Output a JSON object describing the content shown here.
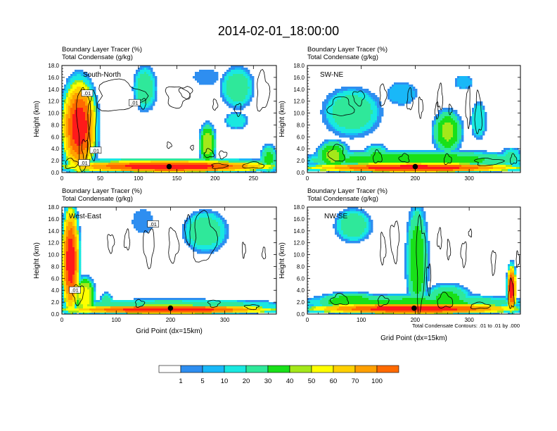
{
  "figure_title": "2014-02-01_18:00:00",
  "panel_header": [
    "Boundary Layer Tracer   (%)",
    "Total Condensate   (g/kg)"
  ],
  "y_axis_label": "Height (km)",
  "x_axis_label": "Grid Point (dx=15km)",
  "contour_note": "Total Condensate Contours: .01 to .01 by .000",
  "colors": {
    "palette": [
      "#ffffff",
      "#2e8ef0",
      "#19b8f8",
      "#19e8e0",
      "#2fe89a",
      "#19e019",
      "#a4e81a",
      "#ffff00",
      "#ffd000",
      "#ffa000",
      "#ff6a00",
      "#ff1a1a",
      "#e00010"
    ],
    "contour": "#000000"
  },
  "colorbar": {
    "labels": [
      "1",
      "5",
      "10",
      "20",
      "30",
      "40",
      "50",
      "60",
      "70",
      "100"
    ]
  },
  "chart_data": [
    {
      "type": "heatmap",
      "label": "South-North",
      "xlim": [
        0,
        280
      ],
      "ylim": [
        0,
        18
      ],
      "x_ticks": [
        "0",
        "50",
        "100",
        "150",
        "200",
        "250"
      ],
      "x_tick_values": [
        0,
        50,
        100,
        150,
        200,
        250
      ],
      "y_ticks": [
        "0.0",
        "2.0",
        "4.0",
        "6.0",
        "8.0",
        "10.0",
        "12.0",
        "14.0",
        "16.0",
        "18.0"
      ],
      "marker": {
        "x": 140,
        "y": 1.0
      },
      "contour_labels": [
        {
          "text": ".01",
          "x": 33,
          "y": 13.3
        },
        {
          "text": ".01",
          "x": 95,
          "y": 11.7
        },
        {
          "text": ".01",
          "x": 44,
          "y": 3.7
        },
        {
          "text": ".01",
          "x": 29,
          "y": 1.6
        }
      ],
      "features": [
        {
          "x": [
            0,
            280
          ],
          "base": 0,
          "top": 2.0,
          "peak": 100
        },
        {
          "x": [
            0,
            280
          ],
          "base": 1.4,
          "top": 2.3,
          "peak": 35
        },
        {
          "x": [
            0,
            45
          ],
          "base": 0,
          "top": 15.5,
          "peak": 100
        },
        {
          "x": [
            10,
            28
          ],
          "base": 5,
          "top": 14,
          "peak": 70
        },
        {
          "x": [
            180,
            200
          ],
          "base": 1.6,
          "top": 8,
          "peak": 50
        },
        {
          "x": [
            260,
            280
          ],
          "base": 0,
          "top": 4.5,
          "peak": 35
        },
        {
          "x": [
            215,
            240
          ],
          "base": 7.5,
          "top": 10,
          "peak": 20
        },
        {
          "x": [
            95,
            122
          ],
          "base": 10.8,
          "top": 17.5,
          "peak": 30
        },
        {
          "x": [
            172,
            205
          ],
          "base": 14.8,
          "top": 17.4,
          "peak": 5
        },
        {
          "x": [
            210,
            248
          ],
          "base": 11.2,
          "top": 17.4,
          "peak": 30
        }
      ],
      "contours": [
        {
          "cx": 75,
          "cy": 12.9,
          "rx": 30,
          "ry": 2.6
        },
        {
          "cx": 150,
          "cy": 12.8,
          "rx": 14,
          "ry": 1.8
        },
        {
          "cx": 162,
          "cy": 13.5,
          "rx": 8,
          "ry": 1.0
        },
        {
          "cx": 105,
          "cy": 11.6,
          "rx": 5,
          "ry": 0.8
        },
        {
          "cx": 262,
          "cy": 13.6,
          "rx": 8,
          "ry": 3.2
        },
        {
          "cx": 230,
          "cy": 10.6,
          "rx": 4,
          "ry": 1.0
        },
        {
          "cx": 200,
          "cy": 11.4,
          "rx": 3,
          "ry": 0.9
        },
        {
          "cx": 28,
          "cy": 7.8,
          "rx": 8,
          "ry": 7.0
        },
        {
          "cx": 40,
          "cy": 8.2,
          "rx": 5,
          "ry": 5.8
        },
        {
          "cx": 30,
          "cy": 4.0,
          "rx": 4,
          "ry": 1.6
        },
        {
          "cx": 140,
          "cy": 4.6,
          "rx": 3,
          "ry": 0.5
        },
        {
          "cx": 170,
          "cy": 4.2,
          "rx": 2,
          "ry": 0.4
        },
        {
          "cx": 192,
          "cy": 3.2,
          "rx": 6,
          "ry": 0.7
        },
        {
          "cx": 210,
          "cy": 3.0,
          "rx": 5,
          "ry": 0.6
        },
        {
          "cx": 250,
          "cy": 1.2,
          "rx": 14,
          "ry": 0.5
        },
        {
          "cx": 205,
          "cy": 1.1,
          "rx": 10,
          "ry": 0.4
        },
        {
          "cx": 12,
          "cy": 1.5,
          "rx": 8,
          "ry": 0.8
        }
      ]
    },
    {
      "type": "heatmap",
      "label": "SW-NE",
      "xlim": [
        0,
        395
      ],
      "ylim": [
        0,
        18
      ],
      "x_ticks": [
        "0",
        "100",
        "200",
        "300"
      ],
      "x_tick_values": [
        0,
        100,
        200,
        300
      ],
      "y_ticks": [
        "0.0",
        "2.0",
        "4.0",
        "6.0",
        "8.0",
        "10.0",
        "12.0",
        "14.0",
        "16.0",
        "18.0"
      ],
      "marker": {
        "x": 200,
        "y": 1.0
      },
      "contour_labels": [],
      "features": [
        {
          "x": [
            0,
            395
          ],
          "base": 0,
          "top": 1.6,
          "peak": 100
        },
        {
          "x": [
            0,
            395
          ],
          "base": 0.6,
          "top": 3.6,
          "peak": 40
        },
        {
          "x": [
            20,
            75
          ],
          "base": 0.5,
          "top": 5.2,
          "peak": 45
        },
        {
          "x": [
            105,
            150
          ],
          "base": 0.5,
          "top": 4.5,
          "peak": 35
        },
        {
          "x": [
            35,
            130
          ],
          "base": 6.5,
          "top": 13.8,
          "peak": 30
        },
        {
          "x": [
            150,
            200
          ],
          "base": 11.6,
          "top": 15.0,
          "peak": 10
        },
        {
          "x": [
            275,
            305
          ],
          "base": 14.2,
          "top": 16.2,
          "peak": 10
        },
        {
          "x": [
            235,
            285
          ],
          "base": 3.5,
          "top": 10.2,
          "peak": 45
        },
        {
          "x": [
            305,
            330
          ],
          "base": 6.0,
          "top": 11.5,
          "peak": 20
        },
        {
          "x": [
            360,
            395
          ],
          "base": 1.0,
          "top": 4.0,
          "peak": 25
        }
      ],
      "contours": [
        {
          "cx": 62,
          "cy": 11.0,
          "rx": 22,
          "ry": 1.6
        },
        {
          "cx": 95,
          "cy": 12.6,
          "rx": 10,
          "ry": 1.2
        },
        {
          "cx": 140,
          "cy": 13.0,
          "rx": 6,
          "ry": 1.8
        },
        {
          "cx": 190,
          "cy": 12.2,
          "rx": 5,
          "ry": 1.8
        },
        {
          "cx": 210,
          "cy": 11.0,
          "rx": 4,
          "ry": 1.6
        },
        {
          "cx": 246,
          "cy": 12.6,
          "rx": 5,
          "ry": 2.0
        },
        {
          "cx": 240,
          "cy": 10.4,
          "rx": 3,
          "ry": 1.4
        },
        {
          "cx": 265,
          "cy": 10.6,
          "rx": 3,
          "ry": 0.8
        },
        {
          "cx": 298,
          "cy": 11.0,
          "rx": 4,
          "ry": 3.2
        },
        {
          "cx": 317,
          "cy": 9.8,
          "rx": 6,
          "ry": 3.4
        },
        {
          "cx": 55,
          "cy": 3.2,
          "rx": 14,
          "ry": 1.4
        },
        {
          "cx": 130,
          "cy": 2.6,
          "rx": 8,
          "ry": 1.0
        },
        {
          "cx": 180,
          "cy": 2.4,
          "rx": 9,
          "ry": 0.7
        },
        {
          "cx": 260,
          "cy": 2.2,
          "rx": 7,
          "ry": 0.8
        },
        {
          "cx": 335,
          "cy": 1.8,
          "rx": 25,
          "ry": 0.6
        },
        {
          "cx": 382,
          "cy": 2.2,
          "rx": 6,
          "ry": 0.8
        }
      ]
    },
    {
      "type": "heatmap",
      "label": "West-East",
      "xlim": [
        0,
        395
      ],
      "ylim": [
        0,
        18
      ],
      "x_ticks": [
        "0",
        "100",
        "200",
        "300"
      ],
      "x_tick_values": [
        0,
        100,
        200,
        300
      ],
      "y_ticks": [
        "0.0",
        "2.0",
        "4.0",
        "6.0",
        "8.0",
        "10.0",
        "12.0",
        "14.0",
        "16.0",
        "18.0"
      ],
      "marker": {
        "x": 200,
        "y": 1.0
      },
      "contour_labels": [
        {
          "text": ".01",
          "x": 168,
          "y": 15.1
        },
        {
          "text": ".01",
          "x": 24,
          "y": 4.0
        }
      ],
      "features": [
        {
          "x": [
            0,
            395
          ],
          "base": 0,
          "top": 1.5,
          "peak": 100
        },
        {
          "x": [
            0,
            395
          ],
          "base": 0.6,
          "top": 2.4,
          "peak": 30
        },
        {
          "x": [
            0,
            32
          ],
          "base": 0,
          "top": 18,
          "peak": 100
        },
        {
          "x": [
            25,
            60
          ],
          "base": 0,
          "top": 6.0,
          "peak": 60
        },
        {
          "x": [
            72,
            92
          ],
          "base": 0.8,
          "top": 3.4,
          "peak": 30
        },
        {
          "x": [
            130,
            168
          ],
          "base": 13.6,
          "top": 17.6,
          "peak": 5
        },
        {
          "x": [
            228,
            300
          ],
          "base": 10.8,
          "top": 17.0,
          "peak": 30
        },
        {
          "x": [
            245,
            268
          ],
          "base": 13.0,
          "top": 15.8,
          "peak": 20
        }
      ],
      "contours": [
        {
          "cx": 90,
          "cy": 12.0,
          "rx": 6,
          "ry": 1.5
        },
        {
          "cx": 120,
          "cy": 12.4,
          "rx": 5,
          "ry": 1.6
        },
        {
          "cx": 160,
          "cy": 11.4,
          "rx": 10,
          "ry": 3.0
        },
        {
          "cx": 205,
          "cy": 11.6,
          "rx": 9,
          "ry": 2.8
        },
        {
          "cx": 232,
          "cy": 14.2,
          "rx": 5,
          "ry": 2.4
        },
        {
          "cx": 262,
          "cy": 12.8,
          "rx": 20,
          "ry": 4.2
        },
        {
          "cx": 335,
          "cy": 10.8,
          "rx": 3,
          "ry": 1.2
        },
        {
          "cx": 372,
          "cy": 10.2,
          "rx": 3,
          "ry": 1.0
        },
        {
          "cx": 30,
          "cy": 3.4,
          "rx": 10,
          "ry": 1.6
        },
        {
          "cx": 143,
          "cy": 1.8,
          "rx": 8,
          "ry": 0.6
        },
        {
          "cx": 280,
          "cy": 1.8,
          "rx": 10,
          "ry": 0.6
        },
        {
          "cx": 350,
          "cy": 1.2,
          "rx": 12,
          "ry": 0.4
        }
      ]
    },
    {
      "type": "heatmap",
      "label": "NW-SE",
      "xlim": [
        0,
        395
      ],
      "ylim": [
        0,
        18
      ],
      "x_ticks": [
        "0",
        "100",
        "200",
        "300"
      ],
      "x_tick_values": [
        0,
        100,
        200,
        300
      ],
      "y_ticks": [
        "0.0",
        "2.0",
        "4.0",
        "6.0",
        "8.0",
        "10.0",
        "12.0",
        "14.0",
        "16.0",
        "18.0"
      ],
      "marker": {
        "x": 198,
        "y": 1.0
      },
      "contour_labels": [],
      "features": [
        {
          "x": [
            0,
            395
          ],
          "base": 0,
          "top": 1.8,
          "peak": 100
        },
        {
          "x": [
            0,
            395
          ],
          "base": 0.6,
          "top": 3.2,
          "peak": 35
        },
        {
          "x": [
            20,
            140
          ],
          "base": 0.6,
          "top": 3.5,
          "peak": 40
        },
        {
          "x": [
            55,
            115
          ],
          "base": 12.4,
          "top": 17.4,
          "peak": 30
        },
        {
          "x": [
            185,
            222
          ],
          "base": 0.4,
          "top": 17.6,
          "peak": 40
        },
        {
          "x": [
            220,
            300
          ],
          "base": 0.6,
          "top": 4.8,
          "peak": 35
        },
        {
          "x": [
            370,
            387
          ],
          "base": 0.2,
          "top": 8.2,
          "peak": 100
        }
      ],
      "contours": [
        {
          "cx": 140,
          "cy": 11.0,
          "rx": 5,
          "ry": 2.5
        },
        {
          "cx": 162,
          "cy": 12.4,
          "rx": 8,
          "ry": 3.2
        },
        {
          "cx": 210,
          "cy": 8.6,
          "rx": 8,
          "ry": 7.5
        },
        {
          "cx": 225,
          "cy": 6.0,
          "rx": 4,
          "ry": 2.4
        },
        {
          "cx": 245,
          "cy": 12.6,
          "rx": 4,
          "ry": 1.6
        },
        {
          "cx": 262,
          "cy": 10.8,
          "rx": 3,
          "ry": 1.6
        },
        {
          "cx": 290,
          "cy": 10.2,
          "rx": 5,
          "ry": 2.0
        },
        {
          "cx": 302,
          "cy": 13.6,
          "rx": 3,
          "ry": 0.6
        },
        {
          "cx": 345,
          "cy": 8.8,
          "rx": 4,
          "ry": 2.0
        },
        {
          "cx": 390,
          "cy": 9.2,
          "rx": 3,
          "ry": 1.2
        },
        {
          "cx": 60,
          "cy": 2.4,
          "rx": 16,
          "ry": 0.9
        },
        {
          "cx": 140,
          "cy": 2.2,
          "rx": 10,
          "ry": 0.8
        },
        {
          "cx": 255,
          "cy": 2.2,
          "rx": 14,
          "ry": 1.2
        },
        {
          "cx": 378,
          "cy": 3.2,
          "rx": 5,
          "ry": 2.4
        },
        {
          "cx": 320,
          "cy": 1.4,
          "rx": 18,
          "ry": 0.5
        }
      ]
    }
  ]
}
